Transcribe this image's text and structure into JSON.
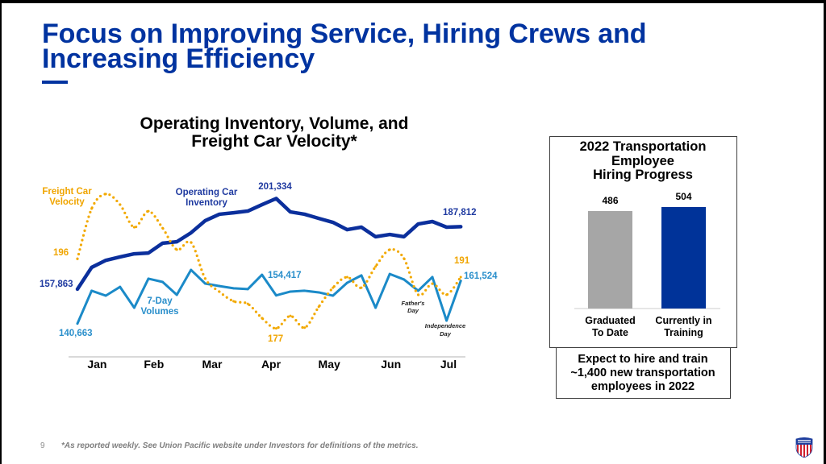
{
  "slide": {
    "title": "Focus on Improving Service, Hiring Crews and\nIncreasing Efficiency",
    "page_number": "9",
    "footnote": "*As reported weekly. See Union Pacific website under Investors for definitions of the metrics.",
    "logo": "union-pacific-shield-icon",
    "colors": {
      "brand_blue": "#0033A0",
      "logo_red": "#D0202E"
    }
  },
  "chart_data": [
    {
      "type": "line",
      "title": "Operating Inventory, Volume, and\nFreight Car Velocity*",
      "xlabel": "",
      "ylabel": "",
      "grid": false,
      "legend": "inline labels",
      "x": [
        1,
        2,
        3,
        4,
        5,
        6,
        7,
        8,
        9,
        10,
        11,
        12,
        13,
        14,
        15,
        16,
        17,
        18,
        19,
        20,
        21,
        22,
        23,
        24,
        25,
        26,
        27,
        28
      ],
      "x_ticks": [
        {
          "label": "Jan",
          "at": 2.5
        },
        {
          "label": "Feb",
          "at": 6.5
        },
        {
          "label": "Mar",
          "at": 10.6
        },
        {
          "label": "Apr",
          "at": 14.75
        },
        {
          "label": "May",
          "at": 18.85
        },
        {
          "label": "Jun",
          "at": 23.2
        },
        {
          "label": "Jul",
          "at": 27.25
        }
      ],
      "series": [
        {
          "name": "Operating Car Inventory",
          "label": "Operating Car\nInventory",
          "color": "#0B2F9C",
          "line_style": "solid",
          "y_range": [
            125000,
            210000
          ],
          "values": [
            157863,
            168300,
            171700,
            173300,
            174800,
            175200,
            179900,
            180600,
            184900,
            190700,
            193800,
            194500,
            195300,
            198400,
            201334,
            194900,
            193800,
            191800,
            189900,
            186400,
            187600,
            183000,
            184100,
            183000,
            189100,
            190300,
            187600,
            187812
          ],
          "point_labels": [
            {
              "index": 0,
              "text": "157,863"
            },
            {
              "index": 14,
              "text": "201,334"
            },
            {
              "index": 27,
              "text": "187,812"
            }
          ]
        },
        {
          "name": "7-Day Volumes",
          "label": "7-Day\nVolumes",
          "color": "#1B8AC8",
          "line_style": "solid",
          "y_range": [
            124000,
            210600
          ],
          "values": [
            140663,
            156700,
            154300,
            158600,
            148400,
            162600,
            161000,
            154700,
            166900,
            160200,
            159000,
            157900,
            157500,
            164500,
            154417,
            156300,
            156700,
            155900,
            154300,
            160600,
            164200,
            148400,
            164900,
            162200,
            156700,
            163400,
            142100,
            161524
          ],
          "point_labels": [
            {
              "index": 0,
              "text": "140,663"
            },
            {
              "index": 14,
              "text": "154,417"
            },
            {
              "index": 27,
              "text": "161,524"
            }
          ]
        },
        {
          "name": "Freight Car Velocity",
          "label": "Freight Car\nVelocity",
          "color": "#F2A900",
          "line_style": "dotted",
          "y_range": [
            169,
            217.4
          ],
          "values": [
            196,
            209.7,
            213.7,
            210.8,
            204.6,
            209.0,
            204.4,
            198.5,
            200.5,
            190.6,
            187.0,
            184.4,
            183.7,
            179.8,
            177,
            180.4,
            177.2,
            182.9,
            188.1,
            191.0,
            188.1,
            193.9,
            198.5,
            196.1,
            186.2,
            189.2,
            186.2,
            191
          ],
          "point_labels": [
            {
              "index": 0,
              "text": "196"
            },
            {
              "index": 14,
              "text": "177"
            },
            {
              "index": 27,
              "text": "191"
            }
          ]
        }
      ],
      "annotations": [
        {
          "index": 24,
          "text": "Father's\nDay"
        },
        {
          "index": 26,
          "text": "Independence\nDay"
        }
      ]
    },
    {
      "type": "bar",
      "title": "2022 Transportation\nEmployee\nHiring Progress",
      "categories": [
        "Graduated\nTo Date",
        "Currently in\nTraining"
      ],
      "values": [
        486,
        504
      ],
      "colors": [
        "#A6A6A6",
        "#003399"
      ],
      "ylim": [
        0,
        540
      ],
      "xlabel": "",
      "ylabel": "",
      "note": "Expect to hire and train\n~1,400 new transportation\nemployees in 2022"
    }
  ]
}
